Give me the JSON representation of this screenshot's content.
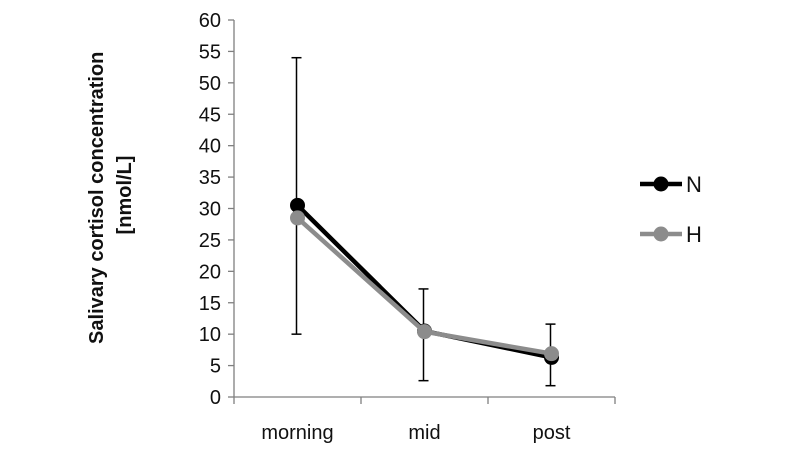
{
  "chart_data": {
    "type": "line",
    "categories": [
      "morning",
      "mid",
      "post"
    ],
    "ylabel_lines": [
      "Salivary cortisol concentration",
      "[nmol/L]"
    ],
    "xlabel": "",
    "ylim": [
      0,
      60
    ],
    "yticks": [
      0,
      5,
      10,
      15,
      20,
      25,
      30,
      35,
      40,
      45,
      50,
      55,
      60
    ],
    "grid": false,
    "legend_position": "right",
    "series": [
      {
        "name": "N",
        "color": "#000000",
        "values": [
          30.5,
          10.5,
          6.3
        ],
        "error_bars": [
          [
            10.0,
            54.0
          ],
          [
            2.6,
            17.2
          ],
          [
            1.8,
            11.6
          ]
        ]
      },
      {
        "name": "H",
        "color": "#8c8c8c",
        "values": [
          28.5,
          10.4,
          6.9
        ],
        "error_bars": null
      }
    ]
  }
}
